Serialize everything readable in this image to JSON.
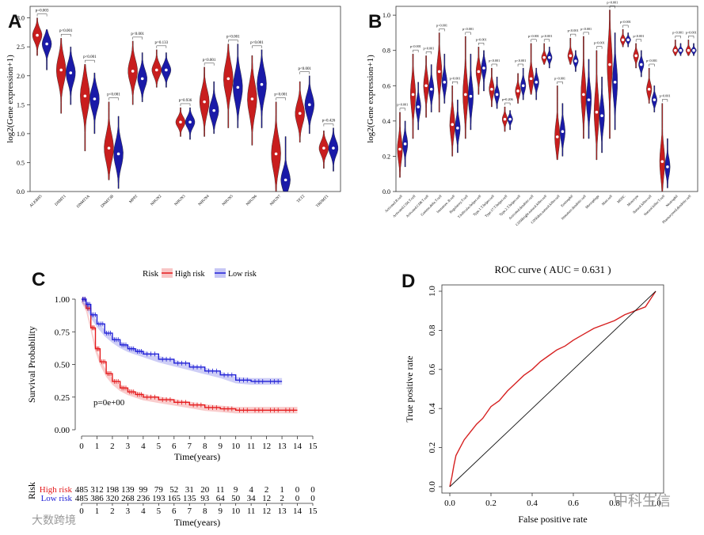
{
  "panel_labels": {
    "a": "A",
    "b": "B",
    "c": "C",
    "d": "D"
  },
  "watermarks": {
    "bottom_left": "大数跨境",
    "bottom_right": "中科生信"
  },
  "chart_data": [
    {
      "type": "violin",
      "ylabel": "log2(Gene expression+1)",
      "ylim": [
        0,
        3.2
      ],
      "yticks": [
        "0.0",
        "0.5",
        "1.0",
        "1.5",
        "2.0",
        "2.5",
        "3.0"
      ],
      "categories": [
        "ALKBH5",
        "DNMT1",
        "DNMT3A",
        "DNMT3B",
        "MPP2",
        "NHUN2",
        "NHUN3",
        "NHUN4",
        "NHUN5",
        "NHUN6",
        "NHUN7",
        "TET2",
        "TRDMT1"
      ],
      "pvalues": [
        "p=0.003",
        "p<0.001",
        "p<0.001",
        "p<0.001",
        "p<0.001",
        "p=0.133",
        "p=0.936",
        "p<0.001",
        "p<0.001",
        "p<0.001",
        "p<0.001",
        "p<0.001",
        "p=0.426"
      ],
      "series": [
        {
          "color": "#c81e1e",
          "medians": [
            2.7,
            2.1,
            1.65,
            0.75,
            2.08,
            2.1,
            1.2,
            1.55,
            1.95,
            1.6,
            0.65,
            1.35,
            0.75
          ],
          "low": [
            2.35,
            1.35,
            0.7,
            0.2,
            1.5,
            1.8,
            0.95,
            0.95,
            1.1,
            0.8,
            0.0,
            0.85,
            0.4
          ],
          "high": [
            3.0,
            2.65,
            2.2,
            1.55,
            2.6,
            2.45,
            1.45,
            2.15,
            2.55,
            2.35,
            1.55,
            1.9,
            1.05
          ]
        },
        {
          "color": "#1a1aa8",
          "medians": [
            2.55,
            2.05,
            1.6,
            0.65,
            1.95,
            2.1,
            1.2,
            1.4,
            1.8,
            1.85,
            0.2,
            1.5,
            0.75
          ],
          "low": [
            2.1,
            1.5,
            1.0,
            0.05,
            1.55,
            1.8,
            0.9,
            1.0,
            1.1,
            1.1,
            0.0,
            1.0,
            0.35
          ],
          "high": [
            2.8,
            2.5,
            2.05,
            1.3,
            2.4,
            2.4,
            1.45,
            1.9,
            2.55,
            2.45,
            0.95,
            2.0,
            1.1
          ]
        }
      ]
    },
    {
      "type": "violin",
      "ylabel": "log2(Gene expression+1)",
      "ylim": [
        0,
        1.05
      ],
      "yticks": [
        "0.0",
        "0.2",
        "0.4",
        "0.6",
        "0.8",
        "1.0"
      ],
      "categories": [
        "Activated.B.cell",
        "Activated.CD4.T.cell",
        "Activated.CD8.T.cell",
        "Gamma.delta.T.cell",
        "Immature..B.cell",
        "Regulatory.T.cell",
        "T.follicular.helper.cell",
        "Type.1.T.helper.cell",
        "Type.17.T.helper.cell",
        "Type.2.T.helper.cell",
        "Activated.dendritic.cell",
        "CD56bright.natural.killer.cell",
        "CD56dim.natural.killer.cell",
        "Eosinophil",
        "Immature.dendritic.cell",
        "Macrophage",
        "Mast.cell",
        "MDSC",
        "Monocyte",
        "Natural.killer.cell",
        "Natural.killer.T.cell",
        "Neutrophil",
        "Plasmacytoid.dendritic.cell"
      ],
      "pvalues": [
        "p<0.001",
        "p<0.001",
        "p<0.001",
        "p<0.001",
        "p<0.001",
        "p<0.001",
        "p<0.001",
        "p<0.001",
        "p=0.206",
        "p<0.001",
        "p<0.001",
        "p<0.001",
        "p<0.001",
        "p<0.001",
        "p<0.001",
        "p<0.001",
        "p<0.001",
        "p<0.001",
        "p<0.001",
        "p<0.001",
        "p<0.001",
        "p<0.001",
        "p<0.001"
      ],
      "series": [
        {
          "color": "#c81e1e",
          "medians": [
            0.24,
            0.55,
            0.6,
            0.68,
            0.38,
            0.55,
            0.68,
            0.58,
            0.41,
            0.57,
            0.64,
            0.76,
            0.31,
            0.77,
            0.55,
            0.45,
            0.72,
            0.86,
            0.77,
            0.58,
            0.17,
            0.8,
            0.8
          ],
          "low": [
            0.08,
            0.3,
            0.42,
            0.45,
            0.2,
            0.3,
            0.55,
            0.48,
            0.34,
            0.5,
            0.55,
            0.72,
            0.18,
            0.72,
            0.3,
            0.18,
            0.3,
            0.82,
            0.7,
            0.5,
            0.0,
            0.77,
            0.77
          ],
          "high": [
            0.45,
            0.78,
            0.77,
            0.9,
            0.6,
            0.88,
            0.82,
            0.7,
            0.48,
            0.67,
            0.84,
            0.84,
            0.6,
            0.87,
            0.88,
            0.8,
            1.03,
            0.92,
            0.84,
            0.7,
            0.5,
            0.86,
            0.86
          ]
        },
        {
          "color": "#1a1aa8",
          "medians": [
            0.27,
            0.48,
            0.58,
            0.62,
            0.36,
            0.54,
            0.7,
            0.55,
            0.41,
            0.6,
            0.62,
            0.76,
            0.34,
            0.74,
            0.52,
            0.43,
            0.62,
            0.86,
            0.72,
            0.52,
            0.14,
            0.8,
            0.8
          ],
          "low": [
            0.14,
            0.35,
            0.45,
            0.5,
            0.22,
            0.35,
            0.57,
            0.47,
            0.35,
            0.52,
            0.52,
            0.7,
            0.2,
            0.68,
            0.3,
            0.22,
            0.35,
            0.82,
            0.65,
            0.45,
            0.02,
            0.77,
            0.77
          ],
          "high": [
            0.4,
            0.62,
            0.72,
            0.78,
            0.52,
            0.78,
            0.8,
            0.65,
            0.46,
            0.7,
            0.7,
            0.82,
            0.5,
            0.8,
            0.75,
            0.65,
            0.9,
            0.9,
            0.8,
            0.6,
            0.3,
            0.84,
            0.84
          ]
        }
      ]
    },
    {
      "type": "line",
      "subtype": "kaplan-meier",
      "legend_title": "Risk",
      "legend_position": "top",
      "ylabel": "Survival Probability",
      "xlabel": "Time(years)",
      "xlim": [
        0,
        15
      ],
      "ylim": [
        0,
        1
      ],
      "xticks": [
        "0",
        "1",
        "2",
        "3",
        "4",
        "5",
        "6",
        "7",
        "8",
        "9",
        "10",
        "11",
        "12",
        "13",
        "14",
        "15"
      ],
      "yticks": [
        "0.00",
        "0.25",
        "0.50",
        "0.75",
        "1.00"
      ],
      "annotation": "p=0e+00",
      "series": [
        {
          "name": "High risk",
          "color": "#e41a1c",
          "x": [
            0,
            0.3,
            0.6,
            0.9,
            1.2,
            1.6,
            2,
            2.5,
            3,
            3.5,
            4,
            5,
            6,
            7,
            8,
            9,
            10,
            11,
            12,
            13,
            14
          ],
          "y": [
            1,
            0.93,
            0.78,
            0.62,
            0.52,
            0.43,
            0.37,
            0.32,
            0.29,
            0.27,
            0.25,
            0.23,
            0.21,
            0.19,
            0.17,
            0.16,
            0.15,
            0.15,
            0.15,
            0.15,
            0.15
          ]
        },
        {
          "name": "Low risk",
          "color": "#1f1fd6",
          "x": [
            0,
            0.3,
            0.6,
            1,
            1.5,
            2,
            2.5,
            3,
            3.5,
            4,
            5,
            6,
            7,
            8,
            9,
            10,
            11,
            12,
            13
          ],
          "y": [
            1,
            0.96,
            0.88,
            0.81,
            0.74,
            0.69,
            0.65,
            0.62,
            0.6,
            0.58,
            0.54,
            0.51,
            0.48,
            0.45,
            0.42,
            0.38,
            0.37,
            0.37,
            0.37
          ]
        }
      ],
      "risk_table": {
        "label": "Risk",
        "xlabel": "Time(years)",
        "rows": [
          {
            "name": "High risk",
            "color": "#e41a1c",
            "values": [
              "485",
              "312",
              "198",
              "139",
              "99",
              "79",
              "52",
              "31",
              "20",
              "11",
              "9",
              "4",
              "2",
              "1",
              "0",
              "0"
            ]
          },
          {
            "name": "Low risk",
            "color": "#1f1fd6",
            "values": [
              "485",
              "386",
              "320",
              "268",
              "236",
              "193",
              "165",
              "135",
              "93",
              "64",
              "50",
              "34",
              "12",
              "2",
              "0",
              "0"
            ]
          }
        ]
      }
    },
    {
      "type": "line",
      "subtype": "roc",
      "title": "ROC curve ( AUC =  0.631 )",
      "xlabel": "False positive rate",
      "ylabel": "True positive rate",
      "xlim": [
        0,
        1
      ],
      "ylim": [
        0,
        1
      ],
      "xticks": [
        "0.0",
        "0.2",
        "0.4",
        "0.6",
        "0.8",
        "1.0"
      ],
      "yticks": [
        "0.0",
        "0.2",
        "0.4",
        "0.6",
        "0.8",
        "1.0"
      ],
      "series": [
        {
          "color": "#d62020",
          "x": [
            0,
            0.01,
            0.02,
            0.03,
            0.05,
            0.07,
            0.1,
            0.13,
            0.16,
            0.2,
            0.24,
            0.28,
            0.32,
            0.36,
            0.4,
            0.44,
            0.48,
            0.52,
            0.56,
            0.6,
            0.65,
            0.7,
            0.75,
            0.8,
            0.85,
            0.9,
            0.95,
            1.0
          ],
          "y": [
            0,
            0.05,
            0.11,
            0.16,
            0.2,
            0.24,
            0.28,
            0.32,
            0.35,
            0.41,
            0.44,
            0.49,
            0.53,
            0.57,
            0.6,
            0.64,
            0.67,
            0.7,
            0.72,
            0.75,
            0.78,
            0.81,
            0.83,
            0.85,
            0.88,
            0.9,
            0.92,
            1.0
          ]
        },
        {
          "color": "#111111",
          "x": [
            0,
            1
          ],
          "y": [
            0,
            1
          ]
        }
      ]
    }
  ]
}
